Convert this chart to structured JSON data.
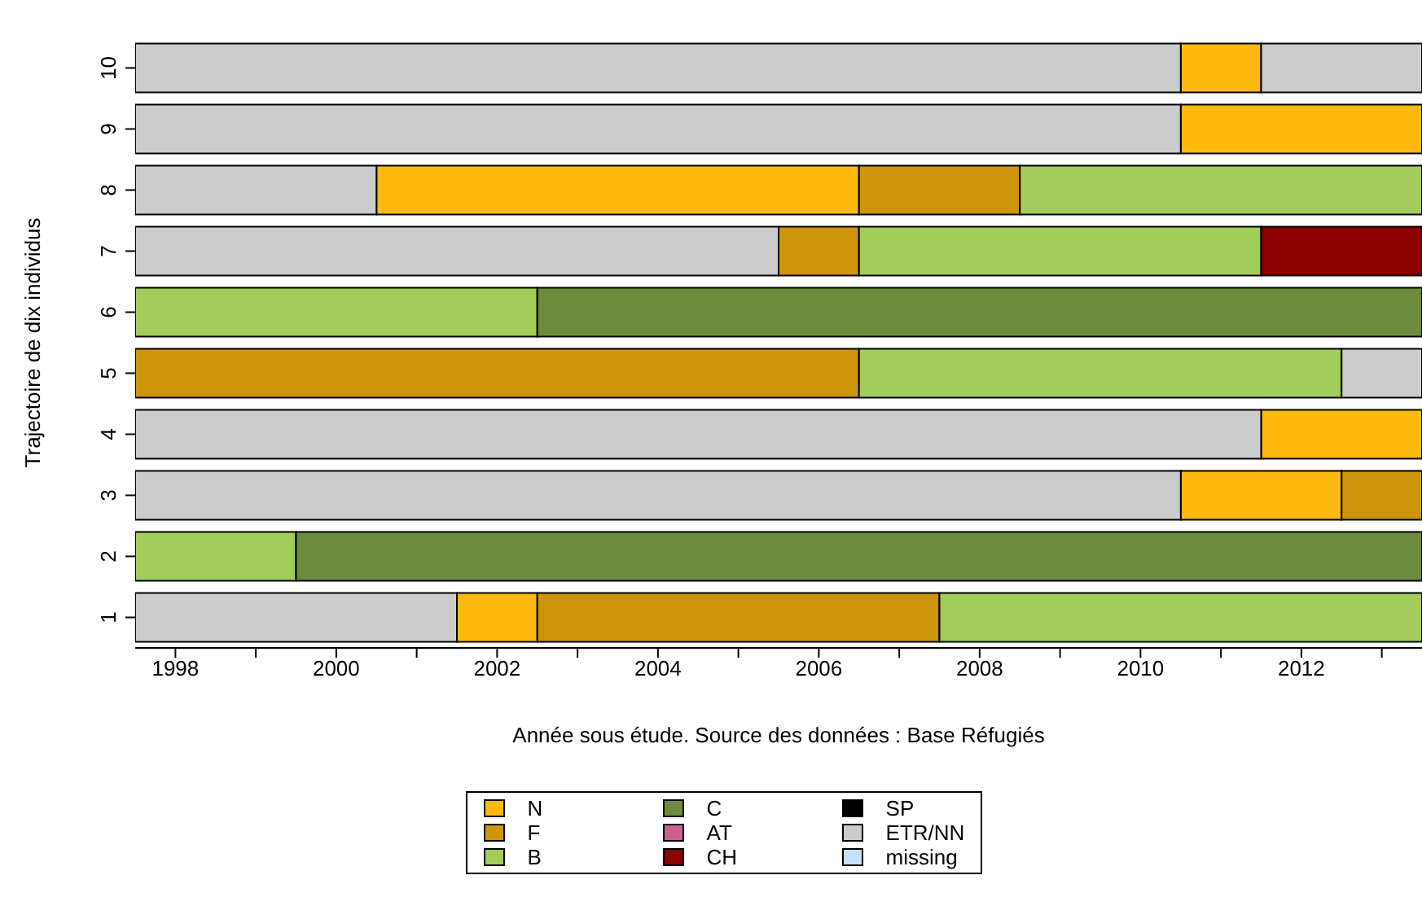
{
  "chart_data": {
    "type": "bar",
    "orientation": "horizontal",
    "xlabel": "Année sous étude. Source des données : Base Réfugiés",
    "ylabel": "Trajectoire de dix individus",
    "categories": [
      "10",
      "9",
      "8",
      "7",
      "6",
      "5",
      "4",
      "3",
      "2",
      "1"
    ],
    "xlim": [
      1997.5,
      2013.5
    ],
    "xticks": [
      1998,
      {
        "value": 1999,
        "label": null
      },
      2000,
      {
        "value": 2001,
        "label": null
      },
      2002,
      {
        "value": 2003,
        "label": null
      },
      2004,
      {
        "value": 2005,
        "label": null
      },
      2006,
      {
        "value": 2007,
        "label": null
      },
      2008,
      {
        "value": 2009,
        "label": null
      },
      2010,
      {
        "value": 2011,
        "label": null
      },
      2012,
      {
        "value": 2013,
        "label": null
      }
    ],
    "series": [
      {
        "name": "N",
        "color": "#ffb90f",
        "values": [
          1,
          3,
          6,
          null,
          null,
          null,
          2,
          2,
          null,
          1
        ],
        "base": [
          2010.5,
          2010.5,
          2000.5,
          null,
          null,
          null,
          2011.5,
          2010.5,
          null,
          2001.5
        ]
      },
      {
        "name": "F",
        "color": "#cd950c",
        "values": [
          null,
          null,
          2,
          1,
          null,
          9,
          null,
          1,
          null,
          5
        ],
        "base": [
          null,
          null,
          2006.5,
          2005.5,
          null,
          1997.5,
          null,
          2012.5,
          null,
          2002.5
        ]
      },
      {
        "name": "B",
        "color": "#a2cd5a",
        "values": [
          null,
          null,
          5,
          5,
          5,
          6,
          null,
          null,
          2,
          6
        ],
        "base": [
          null,
          null,
          2008.5,
          2006.5,
          1997.5,
          2006.5,
          null,
          null,
          1997.5,
          2007.5
        ]
      },
      {
        "name": "C",
        "color": "#6e8b3d",
        "values": [
          null,
          null,
          null,
          null,
          11,
          null,
          null,
          null,
          14,
          null
        ],
        "base": [
          null,
          null,
          null,
          null,
          2002.5,
          null,
          null,
          null,
          1999.5,
          null
        ]
      },
      {
        "name": "AT",
        "color": "#cd6090",
        "values": [
          null,
          null,
          null,
          null,
          null,
          null,
          null,
          null,
          null,
          null
        ]
      },
      {
        "name": "CH",
        "color": "#8b0000",
        "values": [
          null,
          null,
          null,
          2,
          null,
          null,
          null,
          null,
          null,
          null
        ],
        "base": [
          null,
          null,
          null,
          2011.5,
          null,
          null,
          null,
          null,
          null,
          null
        ]
      },
      {
        "name": "SP",
        "color": "#000000",
        "values": [
          null,
          null,
          null,
          null,
          null,
          null,
          null,
          null,
          null,
          null
        ]
      },
      {
        "name": "ETR/NN",
        "color": "#cccccc",
        "values": [
          13,
          13,
          3,
          8,
          null,
          1,
          14,
          13,
          null,
          4
        ],
        "base": [
          1997.5,
          1997.5,
          1997.5,
          1997.5,
          null,
          2012.5,
          1997.5,
          1997.5,
          null,
          1997.5
        ]
      },
      {
        "name": "missing",
        "color": "#c6e2ff",
        "values": [
          null,
          null,
          null,
          null,
          null,
          null,
          null,
          null,
          null,
          null
        ]
      },
      {
        "color": "#cccccc",
        "values": [
          2,
          null,
          null,
          null,
          null,
          null,
          null,
          null,
          null,
          null
        ],
        "base": [
          2011.5,
          null,
          null,
          null,
          null,
          null,
          null,
          null,
          null,
          null
        ]
      }
    ],
    "legend": "bottom"
  }
}
